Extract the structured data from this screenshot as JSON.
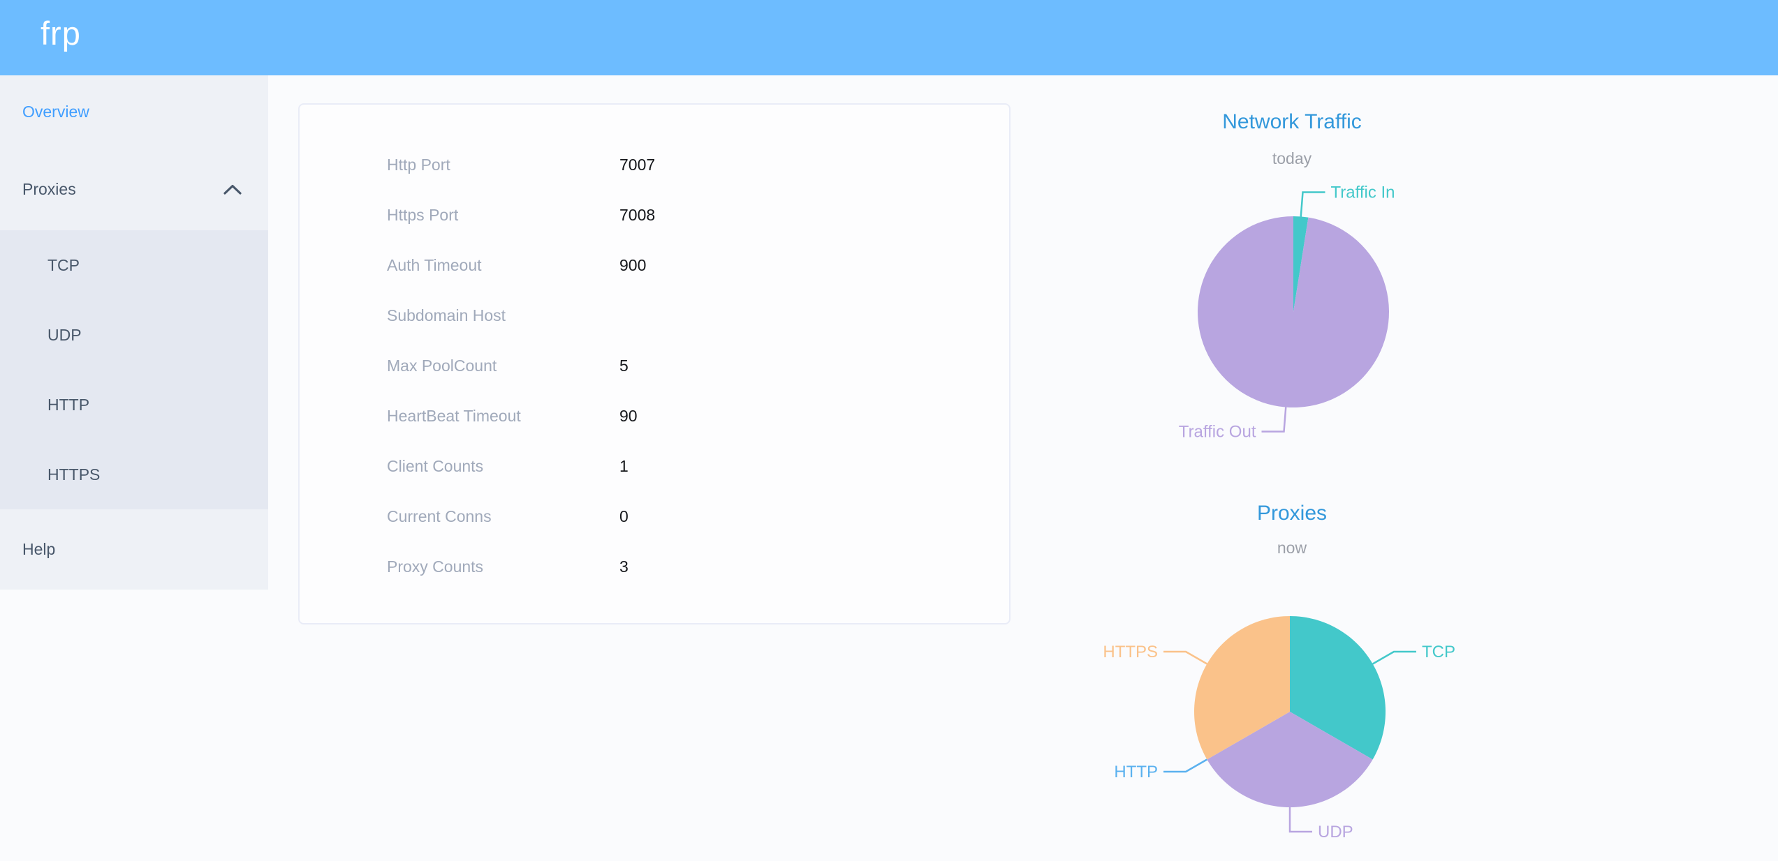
{
  "header": {
    "logo": "frp",
    "background_color": "#6dbcff"
  },
  "sidebar": {
    "items": [
      {
        "label": "Overview",
        "active": true
      },
      {
        "label": "Proxies",
        "expanded": true,
        "children": [
          "TCP",
          "UDP",
          "HTTP",
          "HTTPS"
        ]
      },
      {
        "label": "Help",
        "active": false
      }
    ],
    "active_color": "#409eff",
    "text_color": "#48576a"
  },
  "overview": {
    "rows": [
      {
        "label": "Http Port",
        "value": "7007"
      },
      {
        "label": "Https Port",
        "value": "7008"
      },
      {
        "label": "Auth Timeout",
        "value": "900"
      },
      {
        "label": "Subdomain Host",
        "value": ""
      },
      {
        "label": "Max PoolCount",
        "value": "5"
      },
      {
        "label": "HeartBeat Timeout",
        "value": "90"
      },
      {
        "label": "Client Counts",
        "value": "1"
      },
      {
        "label": "Current Conns",
        "value": "0"
      },
      {
        "label": "Proxy Counts",
        "value": "3"
      }
    ]
  },
  "chart_data": [
    {
      "type": "pie",
      "title": "Network Traffic",
      "subtitle": "today",
      "legend_position": "none",
      "values_unit": "percent-share (estimated from slice angles)",
      "slices": [
        {
          "name": "Traffic In",
          "value": 2.5,
          "color": "#43c8ca"
        },
        {
          "name": "Traffic Out",
          "value": 97.5,
          "color": "#b8a5e0"
        }
      ]
    },
    {
      "type": "pie",
      "title": "Proxies",
      "subtitle": "now",
      "legend_position": "none",
      "values_unit": "proxy count (total 3)",
      "slices": [
        {
          "name": "TCP",
          "value": 1,
          "color": "#43c8ca"
        },
        {
          "name": "UDP",
          "value": 1,
          "color": "#b8a5e0"
        },
        {
          "name": "HTTP",
          "value": 0,
          "color": "#5ab1ef"
        },
        {
          "name": "HTTPS",
          "value": 1,
          "color": "#fac28a"
        }
      ]
    }
  ]
}
